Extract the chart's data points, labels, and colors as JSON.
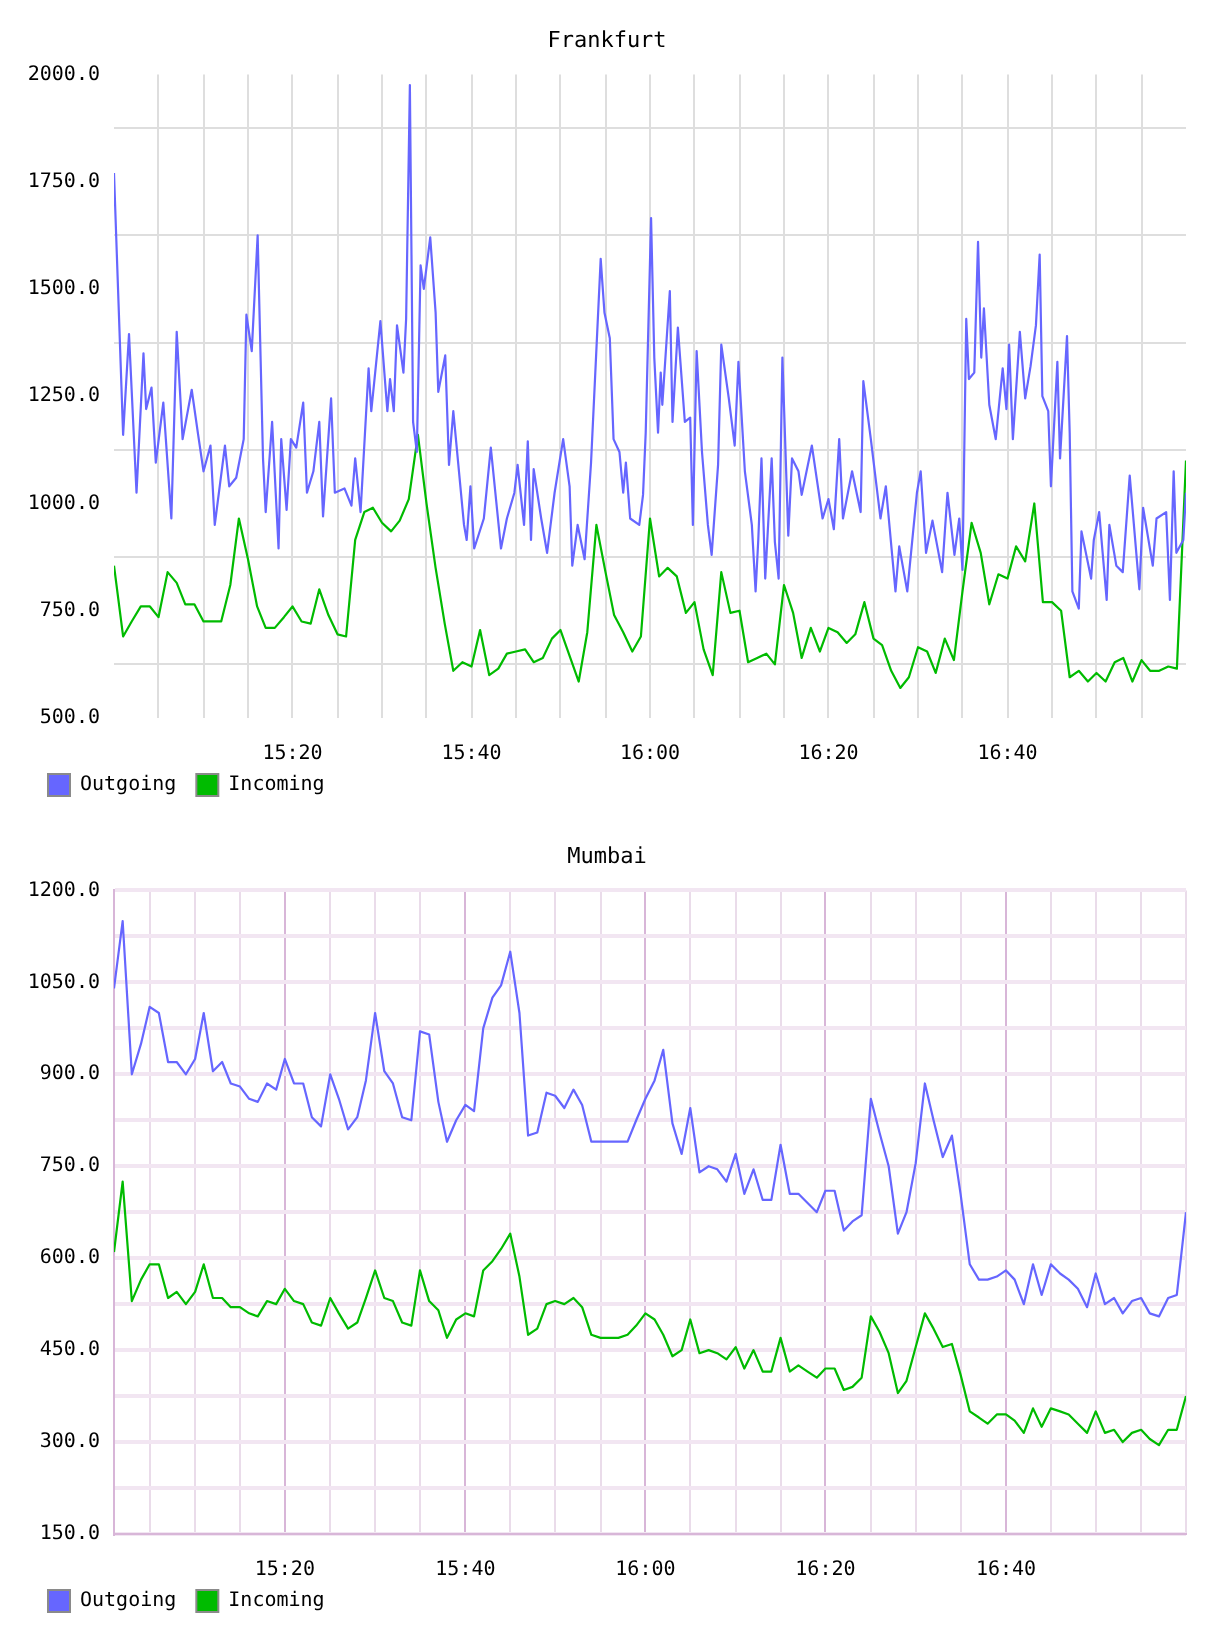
{
  "chart_data": [
    {
      "type": "line",
      "title": "Frankfurt",
      "x": [
        15,
        15.017,
        15.033,
        15.05,
        15.067,
        15.083,
        15.1,
        15.117,
        15.133,
        15.15,
        15.167,
        15.183,
        15.2,
        15.217,
        15.233,
        15.25,
        15.267,
        15.283,
        15.3,
        15.317,
        15.333,
        15.35,
        15.367,
        15.383,
        15.4,
        15.417,
        15.433,
        15.45,
        15.467,
        15.483,
        15.5,
        15.517,
        15.533,
        15.55,
        15.567,
        15.583,
        15.6,
        15.617,
        15.633,
        15.65,
        15.667,
        15.683,
        15.7,
        15.717,
        15.733,
        15.75,
        15.767,
        15.783,
        15.8,
        15.817,
        15.833,
        15.85,
        15.867,
        15.883,
        15.9,
        15.917,
        15.933,
        15.95,
        15.967,
        15.983,
        16,
        16.017,
        16.033,
        16.05,
        16.067,
        16.083,
        16.1,
        16.117,
        16.133,
        16.15,
        16.167,
        16.183,
        16.2,
        16.217,
        16.233,
        16.25,
        16.267,
        16.283,
        16.3,
        16.317,
        16.333,
        16.35,
        16.367,
        16.383,
        16.4,
        16.417,
        16.433,
        16.45,
        16.467,
        16.483,
        16.5,
        16.517,
        16.533,
        16.55,
        16.567,
        16.583,
        16.6,
        16.617,
        16.633,
        16.65,
        16.667,
        16.683,
        16.7,
        16.717,
        16.733,
        16.75,
        16.767,
        16.783,
        16.8,
        16.817,
        16.833,
        16.85,
        16.867,
        16.883,
        16.9,
        16.917,
        16.933,
        16.95,
        16.967,
        16.983,
        17
      ],
      "xlim": [
        15,
        17
      ],
      "xticks": [
        {
          "value": 15.083,
          "label": null
        },
        {
          "value": 15.167,
          "label": null
        },
        {
          "value": 15.25,
          "label": null
        },
        {
          "value": 15.333,
          "label": "15:20"
        },
        {
          "value": 15.417,
          "label": null
        },
        {
          "value": 15.5,
          "label": null
        },
        {
          "value": 15.583,
          "label": null
        },
        {
          "value": 15.667,
          "label": "15:40"
        },
        {
          "value": 15.75,
          "label": null
        },
        {
          "value": 15.833,
          "label": null
        },
        {
          "value": 15.917,
          "label": null
        },
        {
          "value": 16,
          "label": "16:00"
        },
        {
          "value": 16.083,
          "label": null
        },
        {
          "value": 16.167,
          "label": null
        },
        {
          "value": 16.25,
          "label": null
        },
        {
          "value": 16.333,
          "label": "16:20"
        },
        {
          "value": 16.417,
          "label": null
        },
        {
          "value": 16.5,
          "label": null
        },
        {
          "value": 16.583,
          "label": null
        },
        {
          "value": 16.667,
          "label": "16:40"
        },
        {
          "value": 16.75,
          "label": null
        },
        {
          "value": 16.833,
          "label": null
        },
        {
          "value": 16.917,
          "label": null
        }
      ],
      "ylim": [
        500,
        2000
      ],
      "yticks": [
        {
          "value": 500,
          "label": "500.0"
        },
        {
          "value": 625,
          "label": null
        },
        {
          "value": 750,
          "label": "750.0"
        },
        {
          "value": 875,
          "label": null
        },
        {
          "value": 1000,
          "label": "1000.0"
        },
        {
          "value": 1125,
          "label": null
        },
        {
          "value": 1250,
          "label": "1250.0"
        },
        {
          "value": 1375,
          "label": null
        },
        {
          "value": 1500,
          "label": "1500.0"
        },
        {
          "value": 1625,
          "label": null
        },
        {
          "value": 1750,
          "label": "1750.0"
        },
        {
          "value": 1875,
          "label": null
        },
        {
          "value": 2000,
          "label": "2000.0"
        }
      ],
      "grid": true,
      "legend": "bottom left",
      "series": [
        {
          "name": "Outgoing",
          "color": "#6666ff",
          "x": [
            15,
            15.017,
            15.028,
            15.042,
            15.055,
            15.06,
            15.07,
            15.078,
            15.092,
            15.107,
            15.117,
            15.128,
            15.145,
            15.157,
            15.167,
            15.18,
            15.188,
            15.207,
            15.215,
            15.228,
            15.242,
            15.247,
            15.257,
            15.268,
            15.278,
            15.283,
            15.295,
            15.307,
            15.312,
            15.322,
            15.33,
            15.34,
            15.353,
            15.36,
            15.372,
            15.383,
            15.39,
            15.405,
            15.412,
            15.43,
            15.443,
            15.45,
            15.46,
            15.475,
            15.48,
            15.497,
            15.51,
            15.515,
            15.522,
            15.528,
            15.54,
            15.545,
            15.552,
            15.558,
            15.565,
            15.572,
            15.578,
            15.59,
            15.6,
            15.605,
            15.618,
            15.625,
            15.633,
            15.653,
            15.658,
            15.665,
            15.672,
            15.69,
            15.703,
            15.722,
            15.733,
            15.747,
            15.753,
            15.765,
            15.772,
            15.778,
            15.783,
            15.797,
            15.808,
            15.822,
            15.838,
            15.85,
            15.855,
            15.865,
            15.878,
            15.89,
            15.908,
            15.915,
            15.925,
            15.932,
            15.943,
            15.95,
            15.955,
            15.963,
            15.98,
            15.987,
            15.992,
            16.002,
            16.008,
            16.015,
            16.02,
            16.023,
            16.037,
            16.042,
            16.052,
            16.065,
            16.075,
            16.08,
            16.087,
            16.097,
            16.108,
            16.115,
            16.127,
            16.133,
            16.147,
            16.158,
            16.165,
            16.177,
            16.19,
            16.197,
            16.202,
            16.208,
            16.215,
            16.227,
            16.233,
            16.24,
            16.247,
            16.258,
            16.265,
            16.277,
            16.283,
            16.302,
            16.322,
            16.333,
            16.343,
            16.353,
            16.36,
            16.377,
            16.393,
            16.398,
            16.412,
            16.43,
            16.44,
            16.458,
            16.465,
            16.48,
            16.498,
            16.505,
            16.515,
            16.527,
            16.545,
            16.555,
            16.568,
            16.577,
            16.583,
            16.59,
            16.595,
            16.605,
            16.612,
            16.618,
            16.623,
            16.633,
            16.645,
            16.658,
            16.665,
            16.67,
            16.677,
            16.69,
            16.7,
            16.71,
            16.72,
            16.727,
            16.732,
            16.743,
            16.748,
            16.76,
            16.765,
            16.778,
            16.783,
            16.788,
            16.8,
            16.805,
            16.823,
            16.828,
            16.838,
            16.852,
            16.857,
            16.87,
            16.882,
            16.895,
            16.913,
            16.92,
            16.938,
            16.945,
            16.963,
            16.97,
            16.977,
            16.982,
            16.995,
            17
          ],
          "values": [
            1770,
            1160,
            1395,
            1025,
            1350,
            1220,
            1270,
            1095,
            1235,
            965,
            1400,
            1150,
            1265,
            1160,
            1075,
            1135,
            950,
            1135,
            1040,
            1060,
            1150,
            1440,
            1355,
            1625,
            1105,
            980,
            1190,
            895,
            1150,
            985,
            1150,
            1130,
            1235,
            1025,
            1075,
            1190,
            970,
            1245,
            1025,
            1035,
            995,
            1105,
            980,
            1315,
            1215,
            1425,
            1215,
            1290,
            1215,
            1415,
            1305,
            1430,
            1975,
            1190,
            1120,
            1555,
            1500,
            1620,
            1445,
            1260,
            1345,
            1090,
            1215,
            950,
            915,
            1040,
            895,
            965,
            1130,
            895,
            965,
            1025,
            1090,
            950,
            1145,
            915,
            1080,
            965,
            885,
            1025,
            1150,
            1040,
            855,
            950,
            870,
            1095,
            1570,
            1445,
            1385,
            1150,
            1120,
            1025,
            1095,
            965,
            950,
            1020,
            1165,
            1665,
            1340,
            1165,
            1305,
            1230,
            1495,
            1190,
            1410,
            1190,
            1200,
            950,
            1355,
            1120,
            950,
            880,
            1090,
            1370,
            1245,
            1135,
            1330,
            1075,
            950,
            795,
            915,
            1105,
            825,
            1105,
            910,
            825,
            1340,
            925,
            1105,
            1075,
            1020,
            1135,
            965,
            1010,
            940,
            1150,
            965,
            1075,
            980,
            1285,
            1150,
            965,
            1040,
            795,
            900,
            795,
            1025,
            1075,
            885,
            960,
            840,
            1025,
            880,
            965,
            845,
            1430,
            1290,
            1305,
            1610,
            1340,
            1455,
            1230,
            1150,
            1315,
            1220,
            1370,
            1150,
            1400,
            1245,
            1320,
            1415,
            1580,
            1250,
            1215,
            1040,
            1330,
            1105,
            1390,
            1165,
            795,
            755,
            935,
            825,
            915,
            980,
            775,
            950,
            855,
            840,
            1065,
            800,
            990,
            855,
            965,
            980,
            775,
            1075,
            885,
            915,
            1025
          ]
        },
        {
          "name": "Incoming",
          "color": "#00bb00",
          "values": [
            855,
            690,
            725,
            760,
            760,
            735,
            840,
            815,
            765,
            765,
            725,
            725,
            725,
            810,
            965,
            870,
            760,
            710,
            710,
            735,
            760,
            725,
            720,
            800,
            740,
            695,
            690,
            915,
            980,
            990,
            955,
            935,
            960,
            1010,
            1160,
            1000,
            850,
            720,
            610,
            630,
            620,
            705,
            600,
            615,
            650,
            655,
            660,
            630,
            640,
            685,
            705,
            645,
            585,
            700,
            950,
            840,
            740,
            700,
            655,
            690,
            965,
            830,
            850,
            830,
            745,
            770,
            660,
            600,
            840,
            745,
            750,
            630,
            640,
            650,
            625,
            810,
            745,
            640,
            710,
            655,
            710,
            700,
            675,
            695,
            770,
            685,
            670,
            610,
            570,
            595,
            665,
            655,
            605,
            685,
            635,
            795,
            955,
            885,
            765,
            835,
            825,
            900,
            865,
            1000,
            770,
            770,
            750,
            595,
            610,
            585,
            605,
            585,
            630,
            640,
            585,
            635,
            610,
            610,
            620,
            615,
            1100
          ]
        }
      ]
    },
    {
      "type": "line",
      "title": "Mumbai",
      "x": [
        15.017,
        15.033,
        15.05,
        15.067,
        15.083,
        15.1,
        15.117,
        15.133,
        15.15,
        15.167,
        15.183,
        15.2,
        15.217,
        15.233,
        15.25,
        15.267,
        15.283,
        15.3,
        15.317,
        15.333,
        15.35,
        15.367,
        15.383,
        15.4,
        15.417,
        15.433,
        15.45,
        15.467,
        15.483,
        15.5,
        15.517,
        15.533,
        15.55,
        15.567,
        15.583,
        15.6,
        15.617,
        15.633,
        15.65,
        15.667,
        15.683,
        15.7,
        15.717,
        15.733,
        15.75,
        15.767,
        15.783,
        15.8,
        15.817,
        15.833,
        15.85,
        15.867,
        15.883,
        15.9,
        15.917,
        15.933,
        15.95,
        15.967,
        15.983,
        16,
        16.017,
        16.033,
        16.05,
        16.067,
        16.083,
        16.1,
        16.117,
        16.133,
        16.15,
        16.167,
        16.183,
        16.2,
        16.217,
        16.233,
        16.25,
        16.267,
        16.283,
        16.3,
        16.317,
        16.333,
        16.35,
        16.367,
        16.383,
        16.4,
        16.417,
        16.433,
        16.45,
        16.467,
        16.483,
        16.5,
        16.517,
        16.533,
        16.55,
        16.567,
        16.583,
        16.6,
        16.617,
        16.633,
        16.65,
        16.667,
        16.683,
        16.7,
        16.717,
        16.733,
        16.75,
        16.767,
        16.783,
        16.8,
        16.817,
        16.833,
        16.85,
        16.867,
        16.883,
        16.9,
        16.917,
        16.933,
        16.95,
        16.967,
        16.983,
        17
      ],
      "xlim": [
        15.017,
        17
      ],
      "xticks": [
        {
          "value": 15.083,
          "label": null
        },
        {
          "value": 15.167,
          "label": null
        },
        {
          "value": 15.25,
          "label": null
        },
        {
          "value": 15.333,
          "label": "15:20"
        },
        {
          "value": 15.417,
          "label": null
        },
        {
          "value": 15.5,
          "label": null
        },
        {
          "value": 15.583,
          "label": null
        },
        {
          "value": 15.667,
          "label": "15:40"
        },
        {
          "value": 15.75,
          "label": null
        },
        {
          "value": 15.833,
          "label": null
        },
        {
          "value": 15.917,
          "label": null
        },
        {
          "value": 16,
          "label": "16:00"
        },
        {
          "value": 16.083,
          "label": null
        },
        {
          "value": 16.167,
          "label": null
        },
        {
          "value": 16.25,
          "label": null
        },
        {
          "value": 16.333,
          "label": "16:20"
        },
        {
          "value": 16.417,
          "label": null
        },
        {
          "value": 16.5,
          "label": null
        },
        {
          "value": 16.583,
          "label": null
        },
        {
          "value": 16.667,
          "label": "16:40"
        },
        {
          "value": 16.75,
          "label": null
        },
        {
          "value": 16.833,
          "label": null
        },
        {
          "value": 16.917,
          "label": null
        },
        {
          "value": 17,
          "label": null
        }
      ],
      "ylim": [
        150,
        1200
      ],
      "yticks": [
        {
          "value": 150,
          "label": "150.0"
        },
        {
          "value": 225,
          "label": null
        },
        {
          "value": 300,
          "label": "300.0"
        },
        {
          "value": 375,
          "label": null
        },
        {
          "value": 450,
          "label": "450.0"
        },
        {
          "value": 525,
          "label": null
        },
        {
          "value": 600,
          "label": "600.0"
        },
        {
          "value": 675,
          "label": null
        },
        {
          "value": 750,
          "label": "750.0"
        },
        {
          "value": 825,
          "label": null
        },
        {
          "value": 900,
          "label": "900.0"
        },
        {
          "value": 975,
          "label": null
        },
        {
          "value": 1050,
          "label": "1050.0"
        },
        {
          "value": 1125,
          "label": null
        },
        {
          "value": 1200,
          "label": "1200.0"
        }
      ],
      "grid": true,
      "legend": "bottom left",
      "series": [
        {
          "name": "Outgoing",
          "color": "#6666ff",
          "values": [
            1040,
            1150,
            900,
            950,
            1010,
            1000,
            920,
            920,
            900,
            925,
            1000,
            905,
            920,
            885,
            880,
            860,
            855,
            885,
            875,
            925,
            885,
            885,
            830,
            815,
            900,
            860,
            810,
            830,
            890,
            1000,
            905,
            885,
            830,
            825,
            970,
            965,
            855,
            790,
            825,
            850,
            840,
            975,
            1025,
            1045,
            1100,
            1000,
            800,
            805,
            870,
            865,
            845,
            875,
            850,
            790,
            790,
            790,
            790,
            790,
            825,
            860,
            890,
            940,
            820,
            770,
            845,
            740,
            750,
            745,
            725,
            770,
            705,
            745,
            695,
            695,
            785,
            705,
            705,
            690,
            675,
            710,
            710,
            645,
            660,
            670,
            860,
            805,
            750,
            640,
            675,
            755,
            885,
            825,
            765,
            800,
            705,
            590,
            565,
            565,
            570,
            580,
            565,
            525,
            590,
            540,
            590,
            575,
            565,
            550,
            520,
            575,
            525,
            535,
            510,
            530,
            535,
            510,
            505,
            535,
            540,
            675
          ]
        },
        {
          "name": "Incoming",
          "color": "#00bb00",
          "values": [
            610,
            725,
            530,
            565,
            590,
            590,
            535,
            545,
            525,
            545,
            590,
            535,
            535,
            520,
            520,
            510,
            505,
            530,
            525,
            550,
            530,
            525,
            495,
            490,
            535,
            510,
            485,
            495,
            535,
            580,
            535,
            530,
            495,
            490,
            580,
            530,
            515,
            470,
            500,
            510,
            505,
            580,
            595,
            615,
            640,
            570,
            475,
            485,
            525,
            530,
            525,
            535,
            520,
            475,
            470,
            470,
            470,
            475,
            490,
            510,
            500,
            475,
            440,
            450,
            500,
            445,
            450,
            445,
            435,
            455,
            420,
            450,
            415,
            415,
            470,
            415,
            425,
            415,
            405,
            420,
            420,
            385,
            390,
            405,
            505,
            480,
            445,
            380,
            400,
            455,
            510,
            485,
            455,
            460,
            410,
            350,
            340,
            330,
            345,
            345,
            335,
            315,
            355,
            325,
            355,
            350,
            345,
            330,
            315,
            350,
            315,
            320,
            300,
            315,
            320,
            305,
            295,
            320,
            320,
            375
          ]
        }
      ]
    }
  ]
}
